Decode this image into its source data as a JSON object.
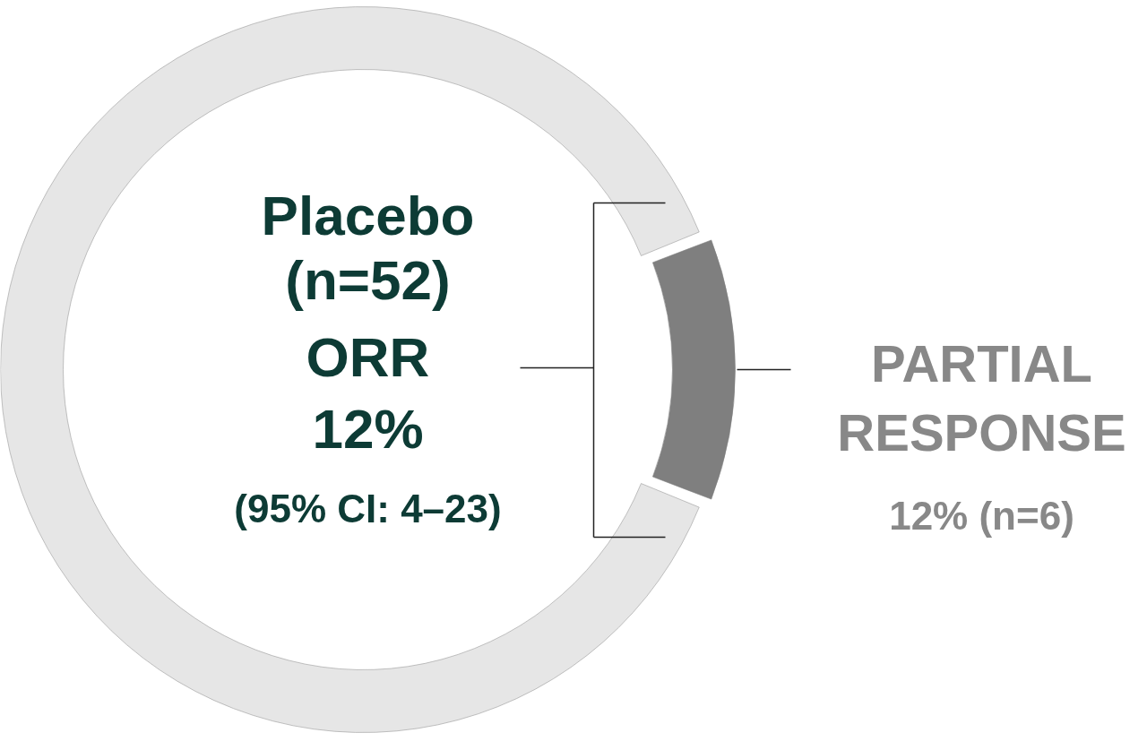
{
  "chart_data": {
    "type": "donut",
    "title": "Placebo (n=52)",
    "annotations": [
      "ORR",
      "12%",
      "(95% CI: 4–23)"
    ],
    "categories": [
      "PARTIAL RESPONSE",
      null
    ],
    "values": [
      12,
      88
    ],
    "colors": [
      "#7f7f7f",
      "#e6e6e6"
    ],
    "value_labels": [
      "12% (n=6)",
      null
    ]
  }
}
